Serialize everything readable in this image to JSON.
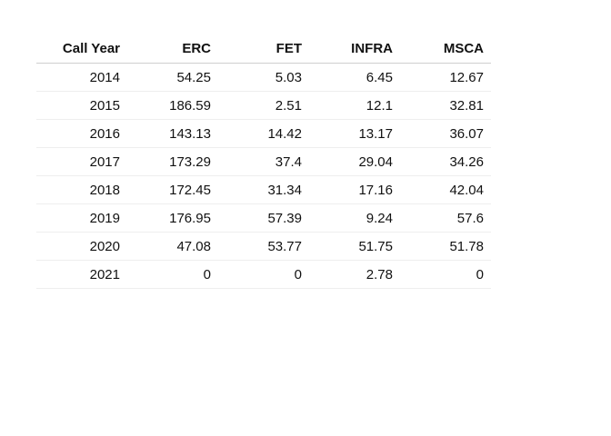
{
  "chart_data": {
    "type": "table",
    "columns": [
      "Call Year",
      "ERC",
      "FET",
      "INFRA",
      "MSCA"
    ],
    "rows": [
      [
        "2014",
        "54.25",
        "5.03",
        "6.45",
        "12.67"
      ],
      [
        "2015",
        "186.59",
        "2.51",
        "12.1",
        "32.81"
      ],
      [
        "2016",
        "143.13",
        "14.42",
        "13.17",
        "36.07"
      ],
      [
        "2017",
        "173.29",
        "37.4",
        "29.04",
        "34.26"
      ],
      [
        "2018",
        "172.45",
        "31.34",
        "17.16",
        "42.04"
      ],
      [
        "2019",
        "176.95",
        "57.39",
        "9.24",
        "57.6"
      ],
      [
        "2020",
        "47.08",
        "53.77",
        "51.75",
        "51.78"
      ],
      [
        "2021",
        "0",
        "0",
        "2.78",
        "0"
      ]
    ]
  }
}
